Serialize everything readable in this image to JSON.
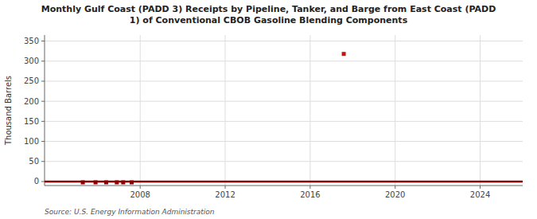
{
  "chart_data": {
    "type": "line",
    "title": "Monthly Gulf Coast (PADD 3) Receipts by Pipeline, Tanker, and Barge from East Coast (PADD\n1) of Conventional CBOB Gasoline Blending Components",
    "ylabel": "Thousand Barrels",
    "source": "Source: U.S. Energy Information Administration",
    "xlim": [
      2003.5,
      2026.0
    ],
    "xticks": [
      2008,
      2012,
      2016,
      2020,
      2024
    ],
    "ylim": [
      -10,
      365
    ],
    "yticks": [
      0,
      50,
      100,
      150,
      200,
      250,
      300,
      350
    ],
    "grid": true,
    "series": [
      {
        "type": "line",
        "color": "#8b0000",
        "x": [
          2003.5,
          2026.0
        ],
        "values": [
          0,
          0
        ]
      },
      {
        "type": "scatter",
        "marker": "square",
        "color": "#8b0000",
        "x": [
          2005.3,
          2005.9,
          2006.4,
          2006.9,
          2007.2,
          2007.6
        ],
        "values": [
          -2,
          -2,
          -2,
          -2,
          -2,
          -2
        ]
      },
      {
        "type": "scatter",
        "marker": "square",
        "color": "#cc1111",
        "x": [
          2017.58
        ],
        "values": [
          318
        ]
      }
    ]
  }
}
